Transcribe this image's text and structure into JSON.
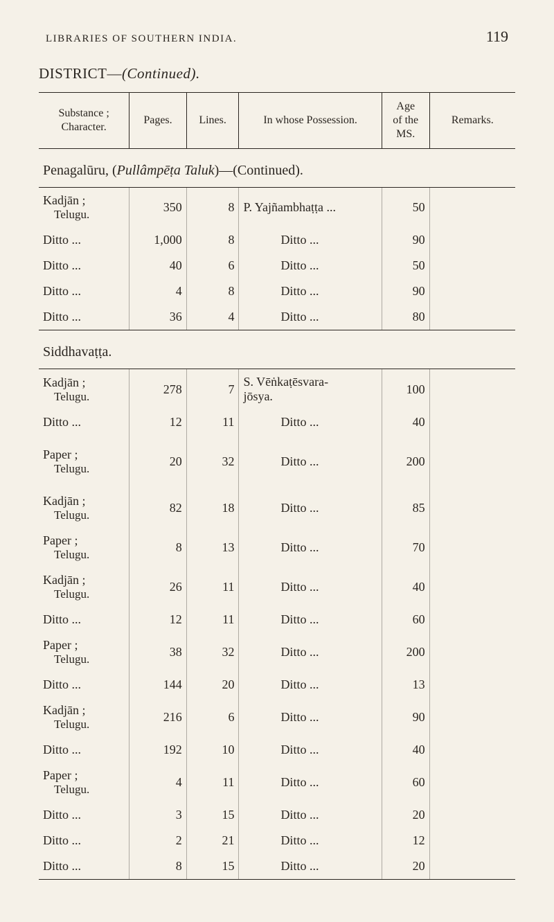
{
  "page_number": "119",
  "running_head": "LIBRARIES OF SOUTHERN INDIA.",
  "district_line_label": "DISTRICT—",
  "district_line_cont": "(Continued).",
  "header": {
    "substance": "Substance ;\nCharacter.",
    "pages": "Pages.",
    "lines": "Lines.",
    "possession": "In whose Possession.",
    "age": "Age\nof the\nMS.",
    "remarks": "Remarks."
  },
  "section1_prefix": "Penagalūru, (",
  "section1_ital": "Pullâmpēṭa Taluk",
  "section1_suffix": ")—(Continued).",
  "section2": "Siddhavaṭṭa.",
  "sec1_rows": [
    {
      "sub_main": "Kadjān ;",
      "sub_lang": "Telugu.",
      "pages": "350",
      "lines": "8",
      "pos": "P. Yajñambhaṭṭa ...",
      "age": "50"
    },
    {
      "sub_main": "Ditto    ...",
      "sub_lang": "",
      "pages": "1,000",
      "lines": "8",
      "pos": "Ditto           ...",
      "age": "90"
    },
    {
      "sub_main": "Ditto    ...",
      "sub_lang": "",
      "pages": "40",
      "lines": "6",
      "pos": "Ditto           ...",
      "age": "50"
    },
    {
      "sub_main": "Ditto    ...",
      "sub_lang": "",
      "pages": "4",
      "lines": "8",
      "pos": "Ditto           ...",
      "age": "90"
    },
    {
      "sub_main": "Ditto    ...",
      "sub_lang": "",
      "pages": "36",
      "lines": "4",
      "pos": "Ditto           ...",
      "age": "80"
    }
  ],
  "sec2_rows": [
    {
      "sub_main": "Kadjān ;",
      "sub_lang": "Telugu.",
      "pages": "278",
      "lines": "7",
      "pos": "S. Vēṅkaṭēsvara-\njōsya.",
      "age": "100"
    },
    {
      "sub_main": "Ditto    ...",
      "sub_lang": "",
      "pages": "12",
      "lines": "11",
      "pos": "Ditto           ...",
      "age": "40"
    },
    {
      "sub_main": "Paper ;",
      "sub_lang": "Telugu.",
      "pages": "20",
      "lines": "32",
      "pos": "Ditto           ...",
      "age": "200",
      "gap_after": true
    },
    {
      "sub_main": "Kadjān ;",
      "sub_lang": "Telugu.",
      "pages": "82",
      "lines": "18",
      "pos": "Ditto           ...",
      "age": "85"
    },
    {
      "sub_main": "Paper ;",
      "sub_lang": "Telugu.",
      "pages": "8",
      "lines": "13",
      "pos": "Ditto           ...",
      "age": "70"
    },
    {
      "sub_main": "Kadjān ;",
      "sub_lang": "Telugu.",
      "pages": "26",
      "lines": "11",
      "pos": "Ditto           ...",
      "age": "40"
    },
    {
      "sub_main": "Ditto    ...",
      "sub_lang": "",
      "pages": "12",
      "lines": "11",
      "pos": "Ditto           ...",
      "age": "60"
    },
    {
      "sub_main": "Paper ;",
      "sub_lang": "Telugu.",
      "pages": "38",
      "lines": "32",
      "pos": "Ditto           ...",
      "age": "200"
    },
    {
      "sub_main": "Ditto    ...",
      "sub_lang": "",
      "pages": "144",
      "lines": "20",
      "pos": "Ditto           ...",
      "age": "13"
    },
    {
      "sub_main": "Kadjān ;",
      "sub_lang": "Telugu.",
      "pages": "216",
      "lines": "6",
      "pos": "Ditto           ...",
      "age": "90"
    },
    {
      "sub_main": "Ditto    ...",
      "sub_lang": "",
      "pages": "192",
      "lines": "10",
      "pos": "Ditto           ...",
      "age": "40"
    },
    {
      "sub_main": "Paper ;",
      "sub_lang": "Telugu.",
      "pages": "4",
      "lines": "11",
      "pos": "Ditto           ...",
      "age": "60"
    },
    {
      "sub_main": "Ditto    ...",
      "sub_lang": "",
      "pages": "3",
      "lines": "15",
      "pos": "Ditto           ...",
      "age": "20"
    },
    {
      "sub_main": "Ditto    ...",
      "sub_lang": "",
      "pages": "2",
      "lines": "21",
      "pos": "Ditto           ...",
      "age": "12"
    },
    {
      "sub_main": "Ditto    ...",
      "sub_lang": "",
      "pages": "8",
      "lines": "15",
      "pos": "Ditto           ...",
      "age": "20"
    }
  ]
}
